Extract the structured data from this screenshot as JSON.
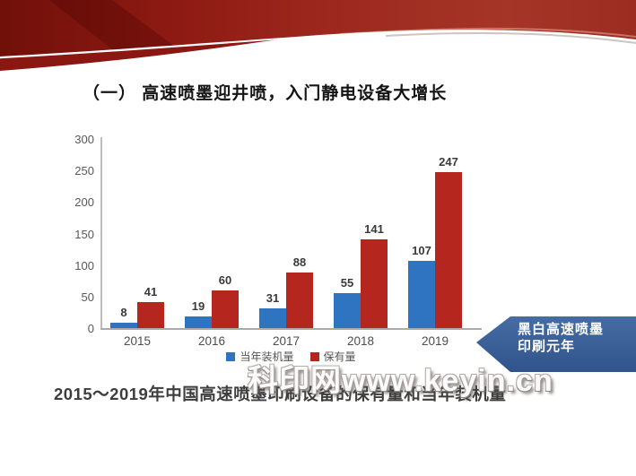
{
  "title": "（一） 高速喷墨迎井喷，入门静电设备大增长",
  "caption": "2015～2019年中国高速喷墨印刷设备的保有量和当年装机量",
  "watermark": "科印网www.keyin.cn",
  "callout": {
    "line1": "黑白高速喷墨",
    "line2": "印刷元年",
    "color": "#3A5F97"
  },
  "colors": {
    "banner_red_dark": "#701009",
    "banner_red_mid": "#9E2A1F",
    "banner_red_light": "#A53526",
    "bar_blue": "#2E74C0",
    "bar_red": "#B5261F",
    "callout_blue": "#3A5F97",
    "axis_gray": "#ABABAB"
  },
  "chart_data": {
    "type": "bar",
    "title": "",
    "xlabel": "",
    "ylabel": "",
    "categories": [
      "2015",
      "2016",
      "2017",
      "2018",
      "2019"
    ],
    "series": [
      {
        "name": "当年装机量",
        "color": "#2E74C0",
        "values": [
          8,
          19,
          31,
          55,
          107
        ]
      },
      {
        "name": "保有量",
        "color": "#B5261F",
        "values": [
          41,
          60,
          88,
          141,
          247
        ]
      }
    ],
    "ylim": [
      0,
      300
    ],
    "yticks": [
      0,
      50,
      100,
      150,
      200,
      250,
      300
    ],
    "grid": false,
    "legend_position": "bottom"
  }
}
